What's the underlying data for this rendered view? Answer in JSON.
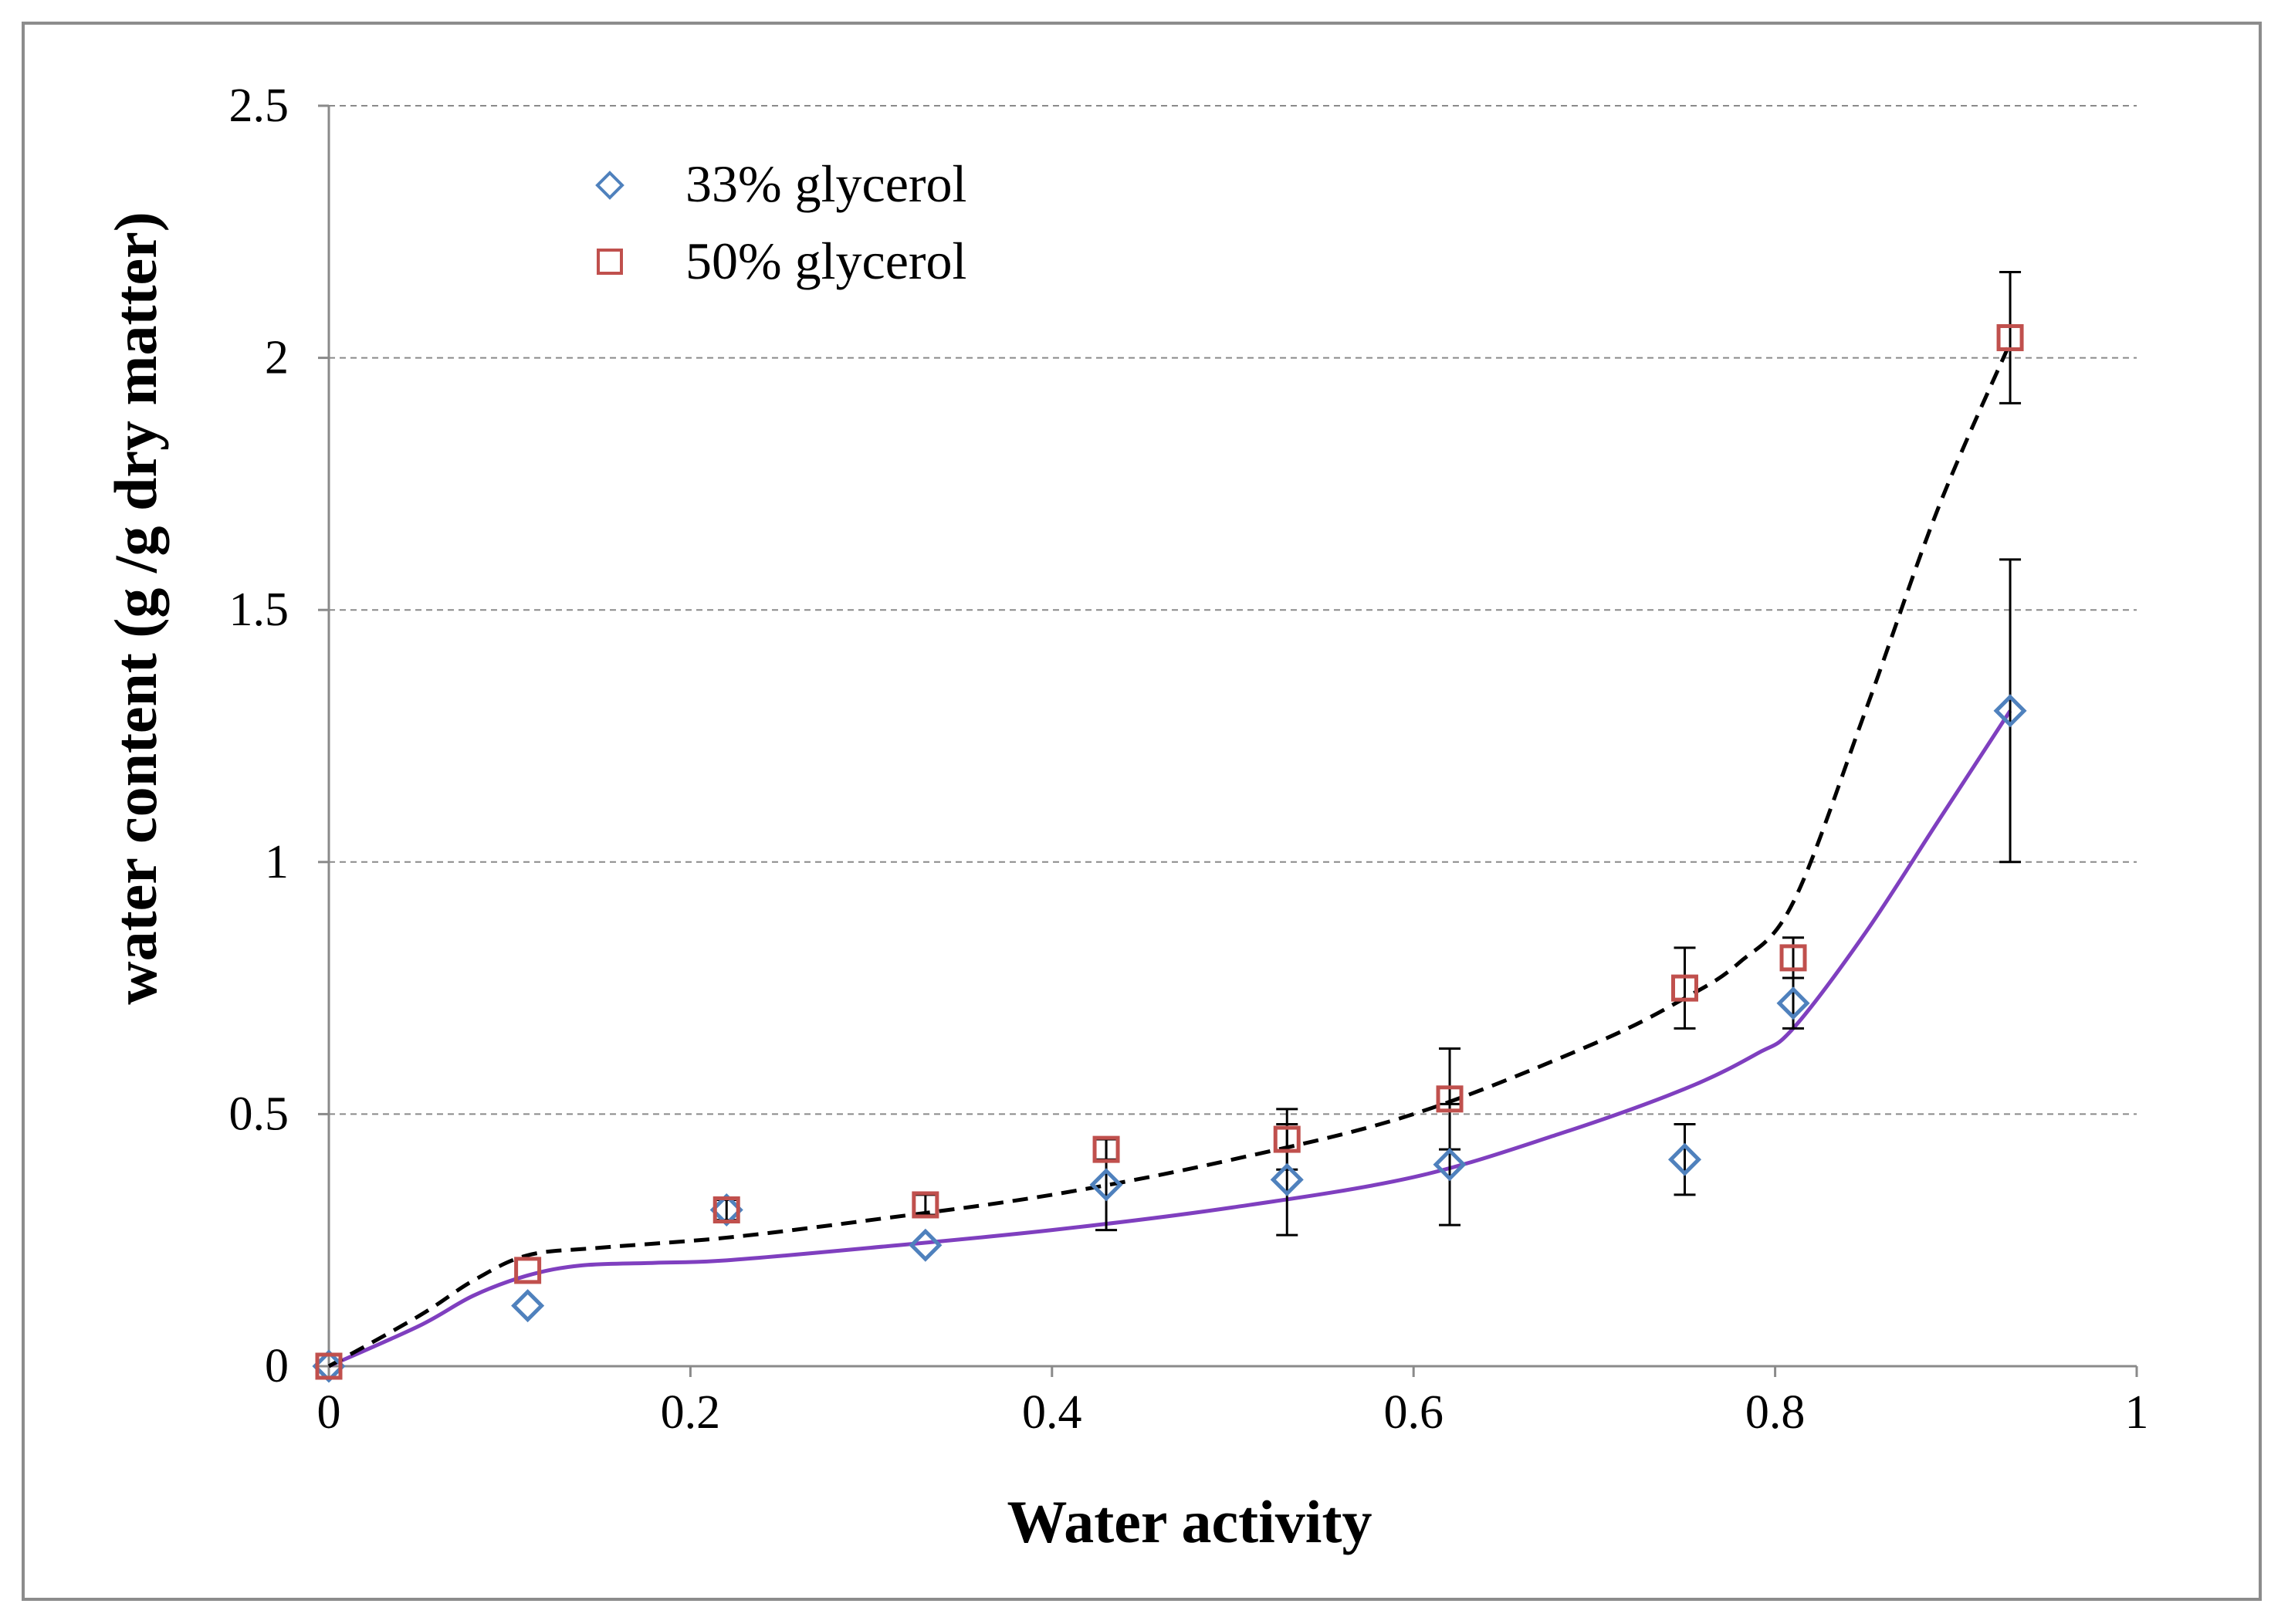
{
  "chart_data": {
    "type": "scatter",
    "title": "",
    "xlabel": "Water activity",
    "ylabel": "water content (g /g dry matter)",
    "xlim": [
      0,
      1
    ],
    "ylim": [
      0,
      2.5
    ],
    "xticks": [
      0,
      0.2,
      0.4,
      0.6,
      0.8,
      1
    ],
    "xtick_labels": [
      "0",
      "0.2",
      "0.4",
      "0.6",
      "0.8",
      "1"
    ],
    "yticks": [
      0,
      0.5,
      1,
      1.5,
      2,
      2.5
    ],
    "ytick_labels": [
      "0",
      "0.5",
      "1",
      "1.5",
      "2",
      "2.5"
    ],
    "grid": "horizontal-dashed",
    "legend_position": "top-left",
    "series": [
      {
        "name": "33% glycerol",
        "marker": "diamond",
        "color": "#4f81bd",
        "x": [
          0,
          0.11,
          0.22,
          0.33,
          0.43,
          0.53,
          0.62,
          0.75,
          0.81,
          0.93
        ],
        "y": [
          0,
          0.12,
          0.31,
          0.24,
          0.36,
          0.37,
          0.4,
          0.41,
          0.72,
          1.3
        ],
        "err": [
          0,
          0,
          0,
          0,
          0.09,
          0.11,
          0.12,
          0.07,
          0.05,
          0.3
        ],
        "fit_color": "#7f3fbf",
        "fit_style": "solid",
        "fit": {
          "x": [
            0,
            0.05,
            0.08,
            0.11,
            0.14,
            0.18,
            0.22,
            0.3,
            0.4,
            0.5,
            0.6,
            0.68,
            0.75,
            0.79,
            0.81,
            0.85,
            0.89,
            0.93
          ],
          "y": [
            0,
            0.08,
            0.14,
            0.18,
            0.2,
            0.205,
            0.21,
            0.235,
            0.27,
            0.315,
            0.375,
            0.46,
            0.55,
            0.62,
            0.67,
            0.86,
            1.08,
            1.3
          ]
        }
      },
      {
        "name": "50% glycerol",
        "marker": "square",
        "color": "#c0504d",
        "x": [
          0,
          0.11,
          0.22,
          0.33,
          0.43,
          0.53,
          0.62,
          0.75,
          0.81,
          0.93
        ],
        "y": [
          0,
          0.19,
          0.31,
          0.32,
          0.43,
          0.45,
          0.53,
          0.75,
          0.81,
          2.04
        ],
        "err": [
          0,
          0,
          0.02,
          0.02,
          0.02,
          0.06,
          0.1,
          0.08,
          0.04,
          0.13
        ],
        "fit_color": "#000000",
        "fit_style": "dashed",
        "fit": {
          "x": [
            0,
            0.05,
            0.08,
            0.11,
            0.15,
            0.22,
            0.3,
            0.4,
            0.5,
            0.6,
            0.7,
            0.75,
            0.78,
            0.81,
            0.85,
            0.89,
            0.93
          ],
          "y": [
            0,
            0.1,
            0.17,
            0.22,
            0.235,
            0.255,
            0.29,
            0.34,
            0.41,
            0.5,
            0.64,
            0.73,
            0.8,
            0.92,
            1.3,
            1.7,
            2.03
          ]
        }
      }
    ]
  }
}
